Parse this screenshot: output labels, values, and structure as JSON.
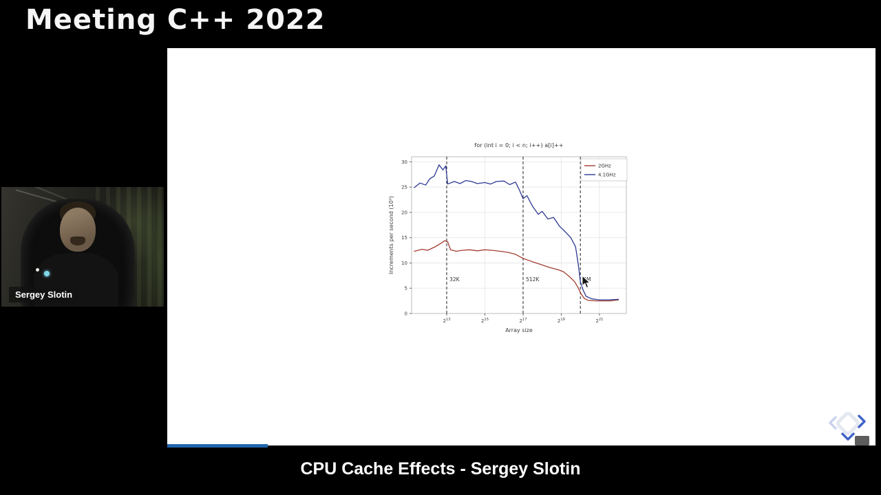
{
  "header": {
    "event_title": "Meeting C++ 2022"
  },
  "footer": {
    "caption": "CPU Cache Effects - Sergey Slotin"
  },
  "webcam": {
    "name_label": "Sergey Slotin"
  },
  "slide": {
    "progress_percent": 14.2
  },
  "colors": {
    "progress_bar": "#2166ac",
    "nav_active": "#3f63c8",
    "nav_inactive": "#c9d3ec"
  },
  "chart_data": {
    "type": "line",
    "title": "for (int i = 0; i < n; i++) a[i]++",
    "xlabel": "Array size",
    "ylabel": "Increments per second (10⁹)",
    "x_scale": "log2",
    "x_tick_base": "2",
    "x_tick_exponents": [
      13,
      15,
      17,
      19,
      21
    ],
    "xlim_exponents": [
      11.16,
      22.41
    ],
    "ylim": [
      0,
      31
    ],
    "y_ticks": [
      0,
      5,
      10,
      15,
      20,
      25,
      30
    ],
    "grid": true,
    "legend_position": "upper right",
    "cache_boundaries": [
      {
        "exponent": 13,
        "label": "32K"
      },
      {
        "exponent": 17,
        "label": "512K"
      },
      {
        "exponent": 20,
        "label": "4M"
      }
    ],
    "series": [
      {
        "name": "2GHz",
        "color": "#a33b2e",
        "points": [
          [
            11.3,
            12.3
          ],
          [
            11.7,
            12.7
          ],
          [
            12.0,
            12.5
          ],
          [
            12.4,
            13.2
          ],
          [
            12.7,
            13.9
          ],
          [
            12.9,
            14.4
          ],
          [
            13.05,
            14.2
          ],
          [
            13.2,
            12.6
          ],
          [
            13.5,
            12.3
          ],
          [
            13.8,
            12.5
          ],
          [
            14.2,
            12.6
          ],
          [
            14.6,
            12.4
          ],
          [
            15.0,
            12.6
          ],
          [
            15.4,
            12.5
          ],
          [
            15.8,
            12.3
          ],
          [
            16.2,
            12.1
          ],
          [
            16.6,
            11.7
          ],
          [
            17.0,
            10.9
          ],
          [
            17.3,
            10.5
          ],
          [
            17.6,
            10.1
          ],
          [
            18.0,
            9.6
          ],
          [
            18.4,
            9.1
          ],
          [
            18.8,
            8.7
          ],
          [
            19.1,
            8.3
          ],
          [
            19.4,
            7.4
          ],
          [
            19.7,
            6.3
          ],
          [
            19.9,
            5.0
          ],
          [
            20.0,
            4.1
          ],
          [
            20.2,
            3.0
          ],
          [
            20.4,
            2.6
          ],
          [
            20.8,
            2.5
          ],
          [
            21.2,
            2.5
          ],
          [
            21.6,
            2.5
          ],
          [
            22.0,
            2.7
          ]
        ]
      },
      {
        "name": "4.1GHz",
        "color": "#2c3792",
        "points": [
          [
            11.3,
            24.9
          ],
          [
            11.6,
            25.8
          ],
          [
            11.9,
            25.4
          ],
          [
            12.1,
            26.6
          ],
          [
            12.35,
            27.2
          ],
          [
            12.6,
            29.4
          ],
          [
            12.8,
            28.4
          ],
          [
            12.95,
            29.2
          ],
          [
            13.05,
            25.6
          ],
          [
            13.4,
            26.1
          ],
          [
            13.7,
            25.7
          ],
          [
            14.0,
            26.3
          ],
          [
            14.3,
            26.1
          ],
          [
            14.6,
            25.7
          ],
          [
            15.0,
            25.9
          ],
          [
            15.3,
            25.6
          ],
          [
            15.6,
            26.1
          ],
          [
            16.0,
            26.2
          ],
          [
            16.3,
            25.5
          ],
          [
            16.6,
            26.0
          ],
          [
            16.8,
            24.5
          ],
          [
            17.0,
            22.7
          ],
          [
            17.2,
            23.3
          ],
          [
            17.5,
            21.2
          ],
          [
            17.8,
            19.6
          ],
          [
            18.0,
            20.2
          ],
          [
            18.3,
            18.7
          ],
          [
            18.6,
            19.0
          ],
          [
            18.9,
            17.3
          ],
          [
            19.2,
            16.2
          ],
          [
            19.5,
            15.0
          ],
          [
            19.75,
            13.2
          ],
          [
            19.9,
            9.5
          ],
          [
            20.0,
            6.3
          ],
          [
            20.15,
            4.6
          ],
          [
            20.3,
            3.4
          ],
          [
            20.6,
            2.9
          ],
          [
            21.0,
            2.7
          ],
          [
            21.5,
            2.7
          ],
          [
            22.0,
            2.8
          ]
        ]
      }
    ]
  }
}
